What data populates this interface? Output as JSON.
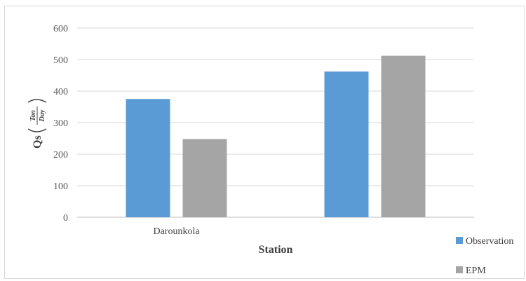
{
  "chart_data": {
    "type": "bar",
    "categories": [
      "Darounkola",
      ""
    ],
    "series": [
      {
        "name": "Observation",
        "values": [
          375,
          462
        ],
        "color": "#5b9bd5"
      },
      {
        "name": "EPM",
        "values": [
          248,
          512
        ],
        "color": "#a5a5a5"
      }
    ],
    "xlabel": "Station",
    "ylabel": {
      "main": "Qs",
      "numerator": "Ton",
      "denominator": "Day"
    },
    "ylim": [
      0,
      600
    ],
    "yticks": [
      0,
      100,
      200,
      300,
      400,
      500,
      600
    ],
    "grid": true,
    "legend_position": "bottom-right"
  }
}
